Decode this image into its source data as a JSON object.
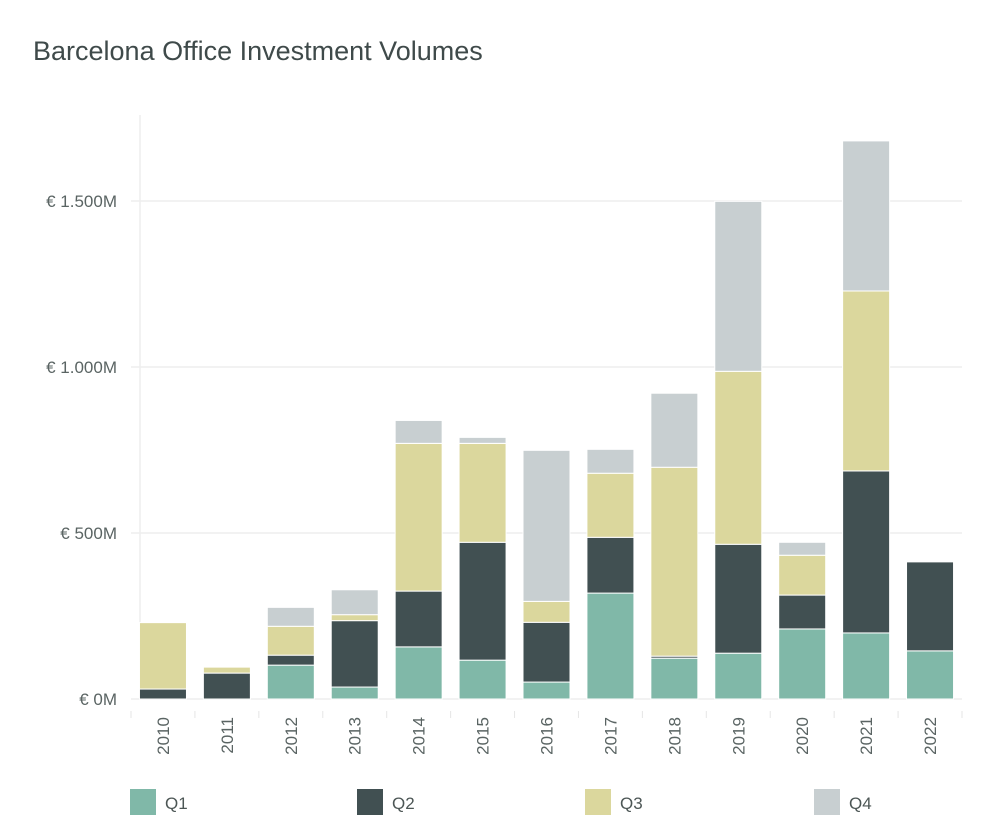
{
  "chart_data": {
    "type": "bar",
    "stacked": true,
    "title": "Barcelona Office Investment Volumes",
    "xlabel": "",
    "ylabel": "",
    "ylim": [
      0,
      1750
    ],
    "yticks": [
      0,
      500,
      1000,
      1500
    ],
    "ytick_labels": [
      "€ 0M",
      "€ 500M",
      "€ 1.000M",
      "€ 1.500M"
    ],
    "grid": true,
    "legend_position": "bottom",
    "categories": [
      "2010",
      "2011",
      "2012",
      "2013",
      "2014",
      "2015",
      "2016",
      "2017",
      "2018",
      "2019",
      "2020",
      "2021",
      "2022"
    ],
    "series": [
      {
        "name": "Q1",
        "color": "#80b8a8",
        "values": [
          0,
          0,
          102,
          36,
          157,
          117,
          51,
          319,
          123,
          138,
          211,
          199,
          145
        ]
      },
      {
        "name": "Q2",
        "color": "#415052",
        "values": [
          30,
          78,
          30,
          200,
          168,
          355,
          180,
          168,
          6,
          328,
          102,
          488,
          268
        ]
      },
      {
        "name": "Q3",
        "color": "#dbd79d",
        "values": [
          200,
          18,
          87,
          18,
          445,
          298,
          63,
          193,
          569,
          521,
          120,
          542,
          0
        ]
      },
      {
        "name": "Q4",
        "color": "#c8cfd1",
        "values": [
          0,
          0,
          57,
          75,
          69,
          18,
          455,
          72,
          223,
          512,
          39,
          452,
          0
        ]
      }
    ]
  }
}
